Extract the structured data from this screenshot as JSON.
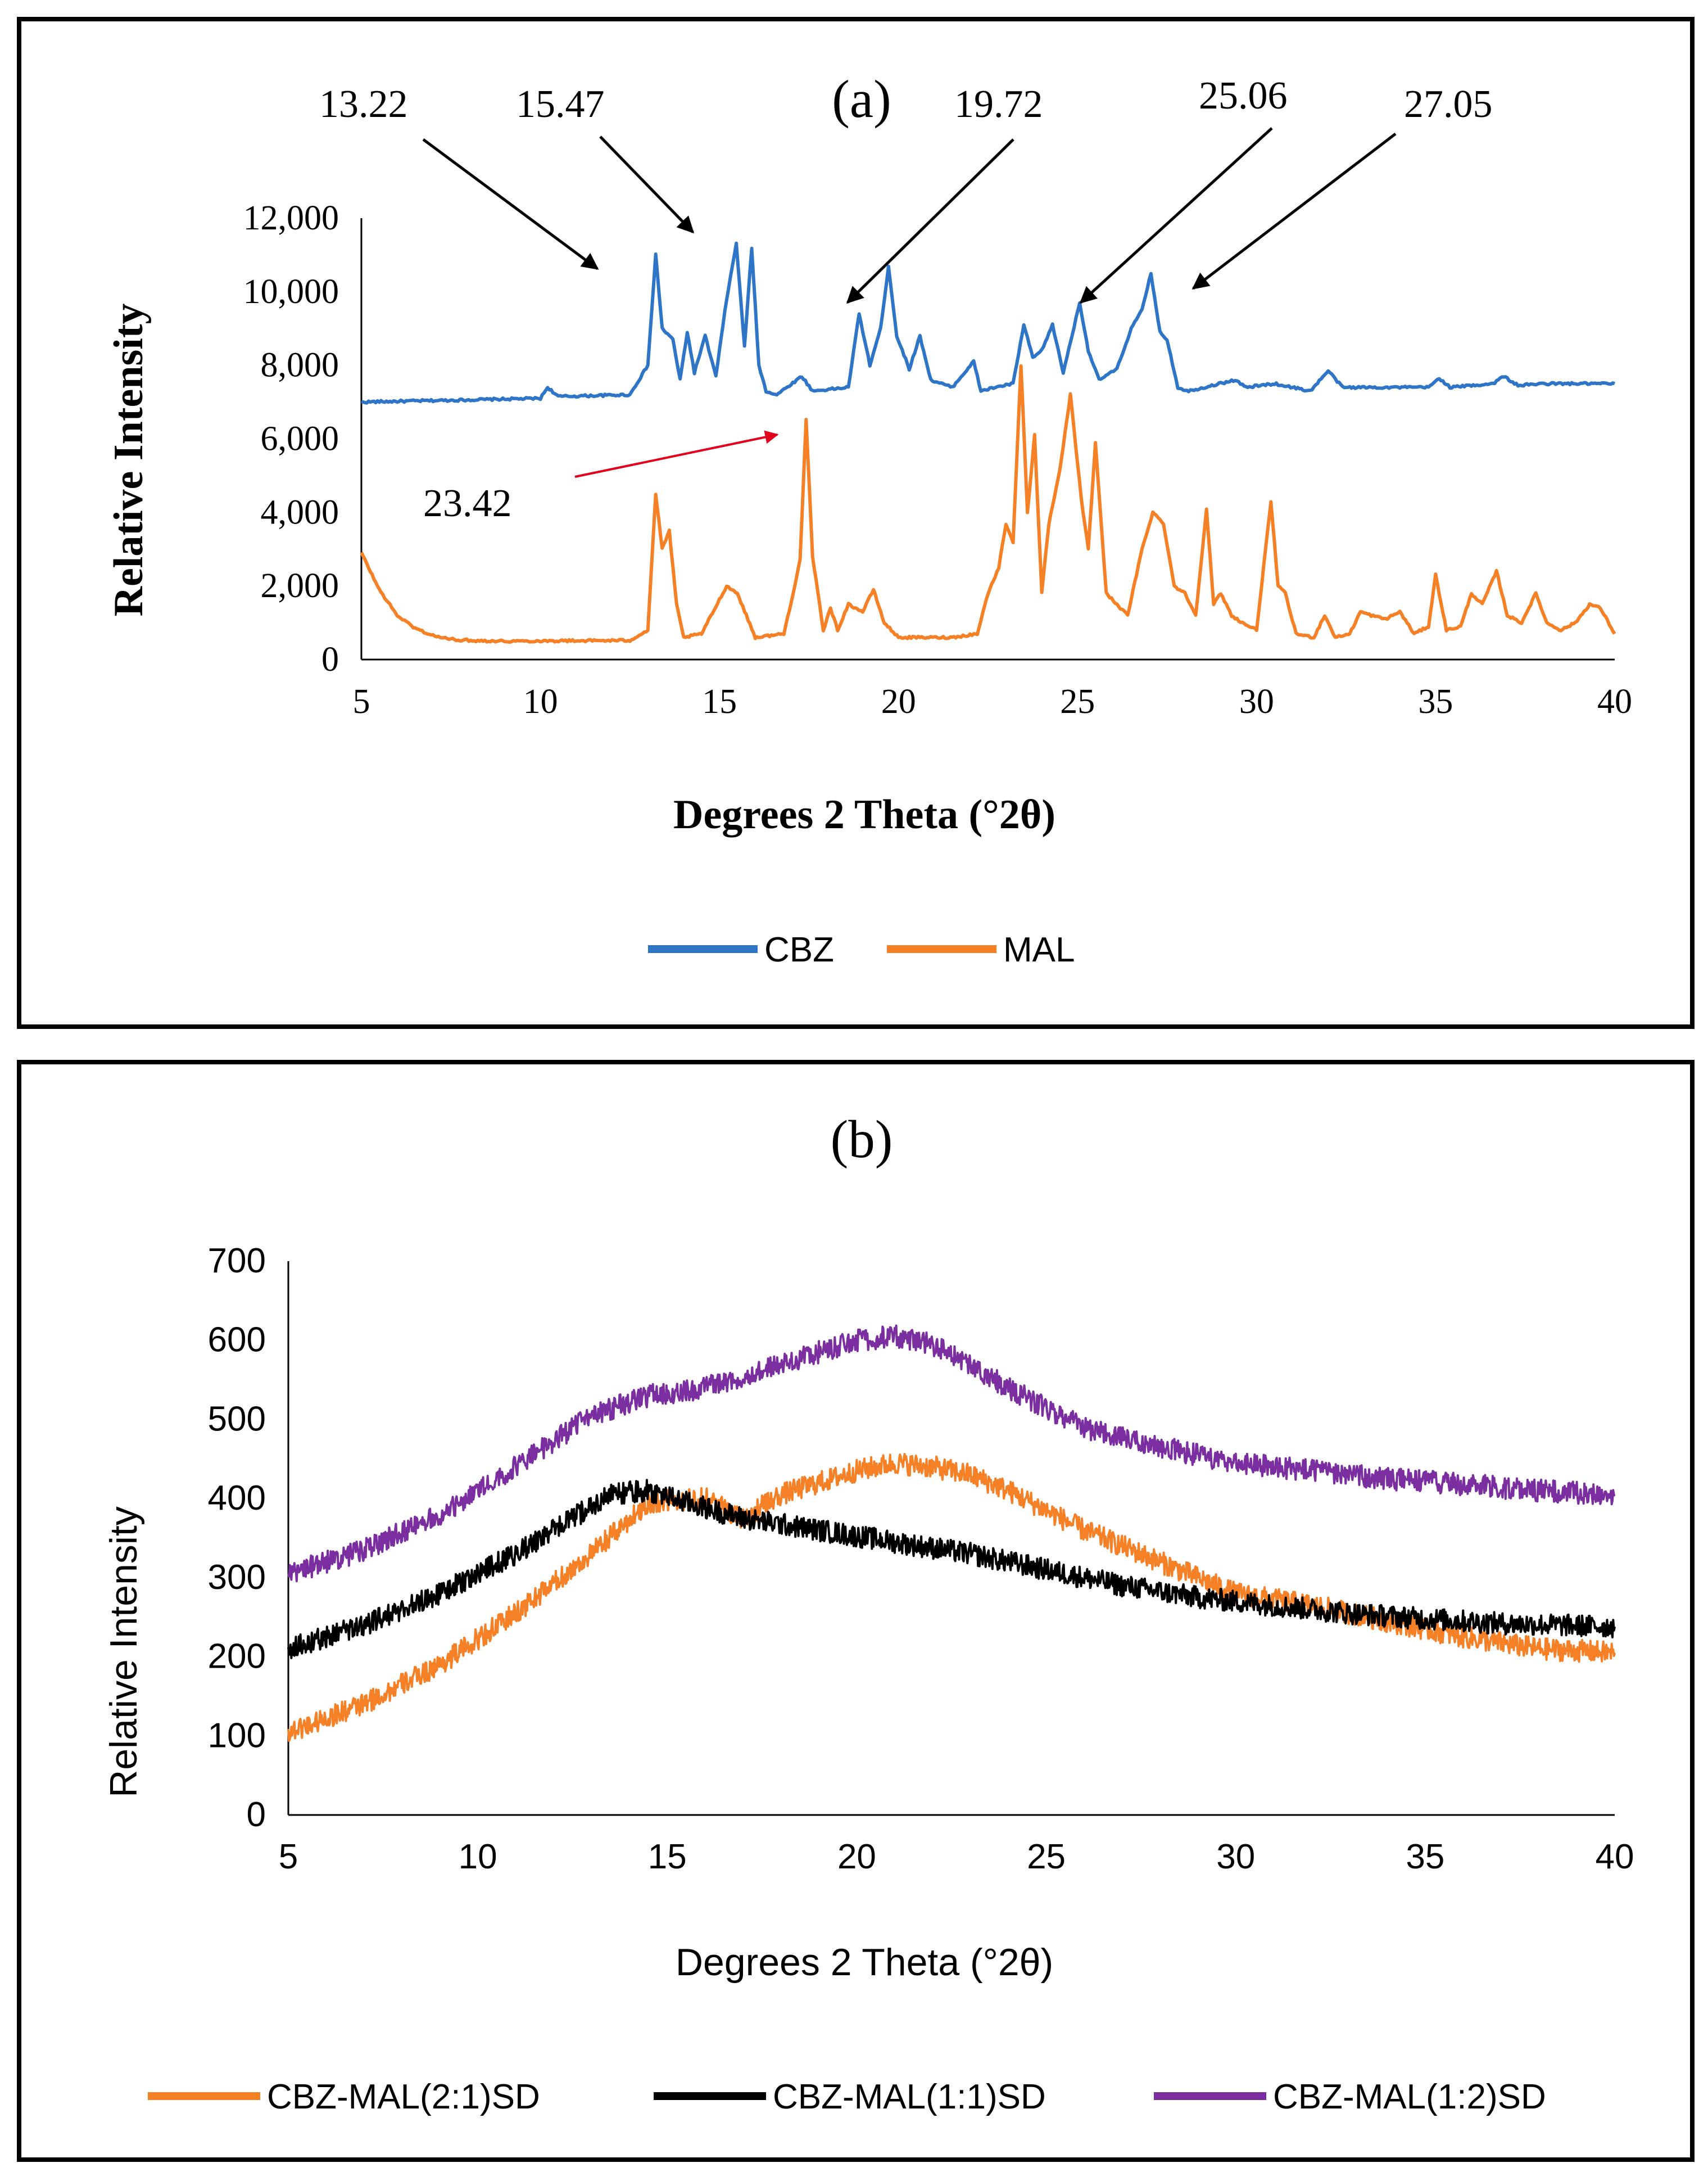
{
  "chart_data": [
    {
      "type": "line",
      "panel_label": "(a)",
      "xlabel": "Degrees 2 Theta (°2θ)",
      "ylabel": "Relative Intensity",
      "xlim": [
        5,
        40
      ],
      "ylim": [
        0,
        12000
      ],
      "x_ticks": [
        "5",
        "10",
        "15",
        "20",
        "25",
        "30",
        "35",
        "40"
      ],
      "y_ticks": [
        "0",
        "2,000",
        "4,000",
        "6,000",
        "8,000",
        "10,000",
        "12,000"
      ],
      "grid": false,
      "legend_position": "bottom",
      "series": [
        {
          "name": "CBZ",
          "color": "#2e75c8",
          "x": [
            5,
            10,
            10.2,
            10.5,
            12.5,
            13.0,
            13.22,
            13.4,
            13.7,
            13.9,
            14.1,
            14.3,
            14.6,
            14.9,
            15.2,
            15.47,
            15.7,
            15.9,
            16.1,
            16.3,
            16.6,
            17.3,
            17.6,
            18.6,
            18.9,
            19.2,
            19.5,
            19.72,
            19.95,
            20.3,
            20.6,
            20.9,
            21.5,
            22.1,
            22.3,
            22.7,
            23.2,
            23.5,
            23.75,
            24.0,
            24.3,
            24.6,
            25.06,
            25.3,
            25.6,
            26.1,
            26.5,
            26.8,
            27.05,
            27.3,
            27.5,
            27.8,
            28.1,
            29.4,
            29.7,
            30.5,
            31.5,
            32.0,
            32.4,
            34.8,
            35.1,
            35.4,
            36.6,
            36.9,
            37.3,
            38.0,
            40
          ],
          "y": [
            7000,
            7100,
            7400,
            7150,
            7200,
            8000,
            11000,
            9000,
            8700,
            7600,
            8900,
            7800,
            8800,
            7700,
            9800,
            11300,
            8500,
            11200,
            8000,
            7300,
            7200,
            7700,
            7300,
            7400,
            9400,
            8000,
            9000,
            10700,
            8800,
            7900,
            8800,
            7600,
            7400,
            8100,
            7300,
            7400,
            7500,
            9100,
            8200,
            8400,
            9100,
            7800,
            9700,
            8400,
            7600,
            7900,
            9000,
            9500,
            10500,
            8900,
            8700,
            7400,
            7300,
            7600,
            7400,
            7500,
            7300,
            7850,
            7400,
            7400,
            7650,
            7400,
            7500,
            7700,
            7450,
            7500,
            7500
          ]
        },
        {
          "name": "MAL",
          "color": "#f58025",
          "x": [
            5,
            5.5,
            6.0,
            6.5,
            7.0,
            7.5,
            8.0,
            9.0,
            12.5,
            13.0,
            13.22,
            13.4,
            13.6,
            13.8,
            14.0,
            14.5,
            15.2,
            15.5,
            16.0,
            16.8,
            17.1,
            17.25,
            17.42,
            17.6,
            17.9,
            18.1,
            18.3,
            18.6,
            19.0,
            19.3,
            19.6,
            20.0,
            21.5,
            22.2,
            22.5,
            22.8,
            23.0,
            23.2,
            23.42,
            23.6,
            23.8,
            24.0,
            24.2,
            24.5,
            24.8,
            25.1,
            25.3,
            25.5,
            25.8,
            26.1,
            26.4,
            26.8,
            27.1,
            27.4,
            27.7,
            28.0,
            28.3,
            28.6,
            28.8,
            29.0,
            29.3,
            29.6,
            30.0,
            30.4,
            30.6,
            30.8,
            31.1,
            31.6,
            31.9,
            32.2,
            32.6,
            32.9,
            33.2,
            33.6,
            34.0,
            34.4,
            34.8,
            35.0,
            35.3,
            35.7,
            36.0,
            36.3,
            36.7,
            37.0,
            37.4,
            37.8,
            38.1,
            38.5,
            38.9,
            39.3,
            39.6,
            40
          ],
          "y": [
            2900,
            1900,
            1200,
            850,
            650,
            550,
            520,
            500,
            520,
            800,
            4500,
            3000,
            3500,
            1500,
            600,
            700,
            2000,
            1800,
            600,
            700,
            2000,
            2700,
            6500,
            2800,
            800,
            1400,
            800,
            1500,
            1300,
            1900,
            1000,
            600,
            600,
            700,
            1800,
            2500,
            3700,
            3200,
            8000,
            4000,
            6100,
            1800,
            3700,
            5100,
            7200,
            4400,
            3000,
            5900,
            1800,
            1500,
            1200,
            3000,
            4000,
            3700,
            2000,
            1800,
            1200,
            4100,
            1500,
            1800,
            1200,
            1000,
            800,
            4300,
            2000,
            1800,
            700,
            600,
            1200,
            600,
            700,
            1300,
            1200,
            1100,
            1300,
            700,
            900,
            2300,
            800,
            900,
            1800,
            1500,
            2400,
            1200,
            1000,
            1800,
            1000,
            800,
            1000,
            1500,
            1400,
            700
          ]
        }
      ],
      "annotations": [
        "13.22",
        "15.47",
        "19.72",
        "25.06",
        "27.05",
        "23.42"
      ]
    },
    {
      "type": "line",
      "panel_label": "(b)",
      "xlabel": "Degrees 2 Theta (°2θ)",
      "ylabel": "Relative Intensity",
      "xlim": [
        5,
        40
      ],
      "ylim": [
        0,
        700
      ],
      "x_ticks": [
        "5",
        "10",
        "15",
        "20",
        "25",
        "30",
        "35",
        "40"
      ],
      "y_ticks": [
        "0",
        "100",
        "200",
        "300",
        "400",
        "500",
        "600",
        "700"
      ],
      "grid": false,
      "legend_position": "bottom",
      "series": [
        {
          "name": "CBZ-MAL(2:1)SD",
          "color": "#f58025",
          "x": [
            5,
            7,
            9,
            11,
            13,
            14.5,
            16,
            17,
            18,
            19,
            20,
            21,
            22,
            23,
            24,
            25,
            26,
            27,
            28,
            29,
            30,
            32,
            34,
            36,
            38,
            40
          ],
          "y": [
            105,
            140,
            190,
            255,
            330,
            395,
            400,
            375,
            405,
            420,
            435,
            445,
            440,
            430,
            410,
            385,
            360,
            340,
            320,
            300,
            280,
            265,
            245,
            225,
            210,
            205
          ]
        },
        {
          "name": "CBZ-MAL(1:1)SD",
          "color": "#000000",
          "x": [
            5,
            7,
            9,
            11,
            12.5,
            13.5,
            14.5,
            15.5,
            17,
            19,
            21,
            23,
            25,
            27,
            29,
            31,
            33,
            35,
            37,
            40
          ],
          "y": [
            210,
            240,
            280,
            330,
            375,
            405,
            410,
            395,
            375,
            360,
            345,
            330,
            310,
            290,
            275,
            265,
            255,
            248,
            242,
            238
          ]
        },
        {
          "name": "CBZ-MAL(1:2)SD",
          "color": "#7b2ea0",
          "x": [
            5,
            7,
            9,
            11,
            13,
            14.5,
            16,
            18,
            20,
            21,
            22,
            24,
            26,
            28,
            30,
            32,
            34,
            36,
            38,
            40
          ],
          "y": [
            305,
            335,
            380,
            440,
            505,
            530,
            540,
            570,
            600,
            605,
            595,
            540,
            490,
            465,
            445,
            435,
            425,
            418,
            410,
            405
          ]
        }
      ]
    }
  ]
}
